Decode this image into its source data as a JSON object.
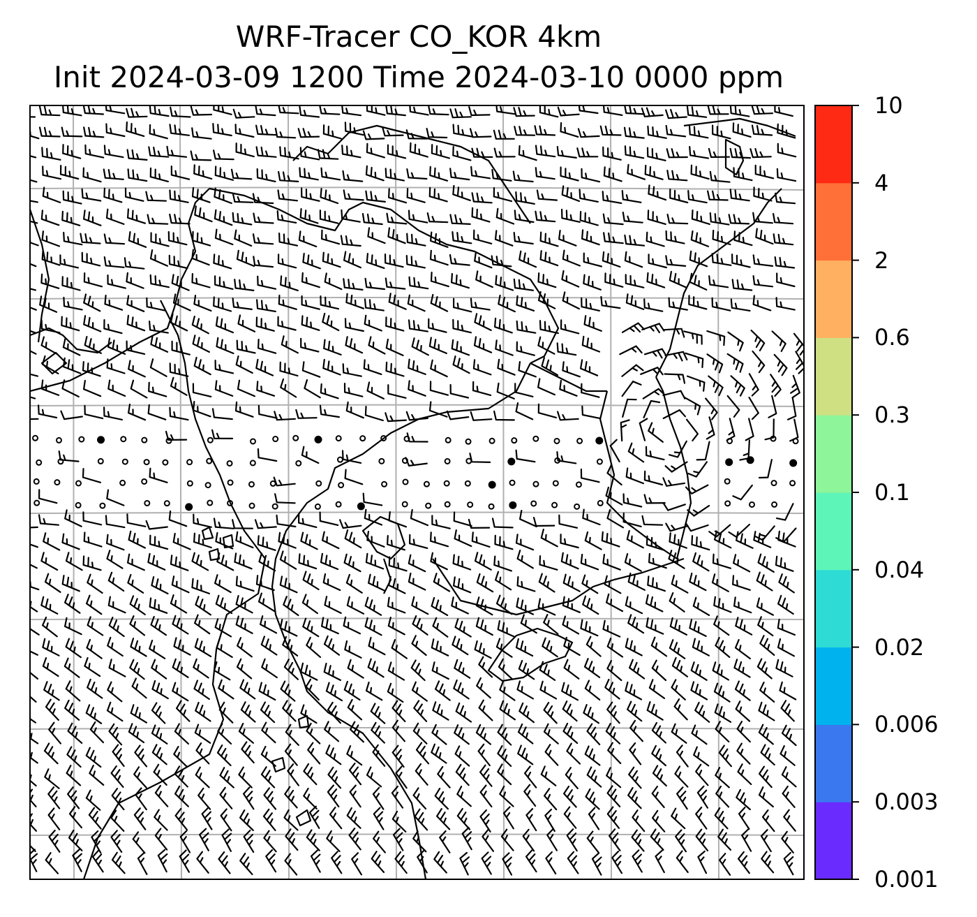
{
  "title": {
    "line1": "WRF-Tracer CO_KOR 4km",
    "line2": "Init 2024-03-09 1200 Time 2024-03-10 0000 ppm"
  },
  "colorbar": {
    "levels": [
      "0.001",
      "0.003",
      "0.006",
      "0.02",
      "0.04",
      "0.1",
      "0.3",
      "0.6",
      "2",
      "4",
      "10"
    ],
    "colors": [
      "#6a2bff",
      "#3a78f0",
      "#00b3ee",
      "#2edbd5",
      "#5df5b8",
      "#8ef59a",
      "#cfe082",
      "#ffb060",
      "#ff7038",
      "#ff2a14"
    ]
  },
  "map": {
    "field": "wind barbs",
    "gridlines": true,
    "colors": {
      "grid": "#b0b0b0",
      "coast": "#000000",
      "barb": "#000000"
    }
  }
}
